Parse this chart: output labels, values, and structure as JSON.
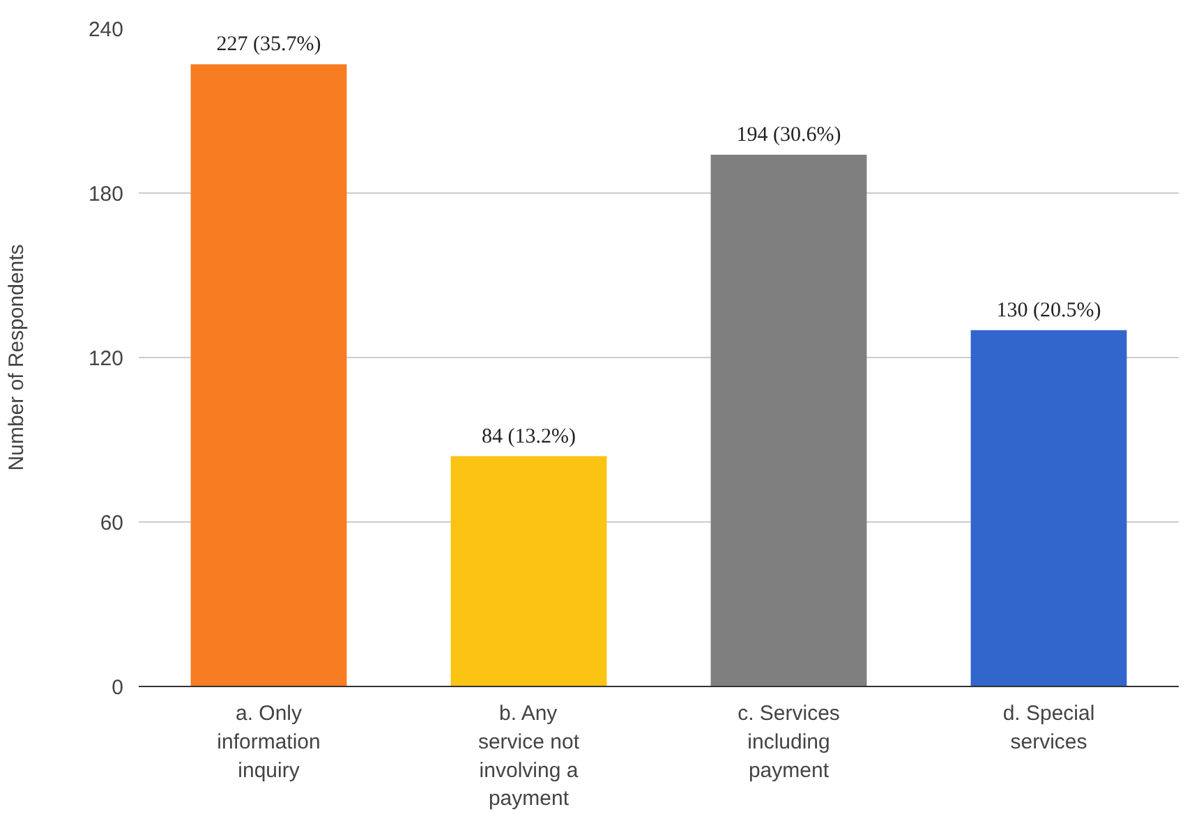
{
  "chart_data": {
    "type": "bar",
    "ylabel": "Number of Respondents",
    "categories": [
      "a. Only information inquiry",
      "b. Any service not involving a payment",
      "c. Services including payment",
      "d. Special services"
    ],
    "values": [
      227,
      84,
      194,
      130
    ],
    "colors": [
      "#f77c22",
      "#fbc312",
      "#7f7f7f",
      "#3366cc"
    ],
    "value_labels": [
      "227 (35.7%)",
      "84 (13.2%)",
      "194 (30.6%)",
      "130 (20.5%)"
    ],
    "ylim": [
      0,
      240
    ],
    "yticks": [
      0,
      60,
      120,
      180,
      240
    ],
    "grid": "y"
  }
}
